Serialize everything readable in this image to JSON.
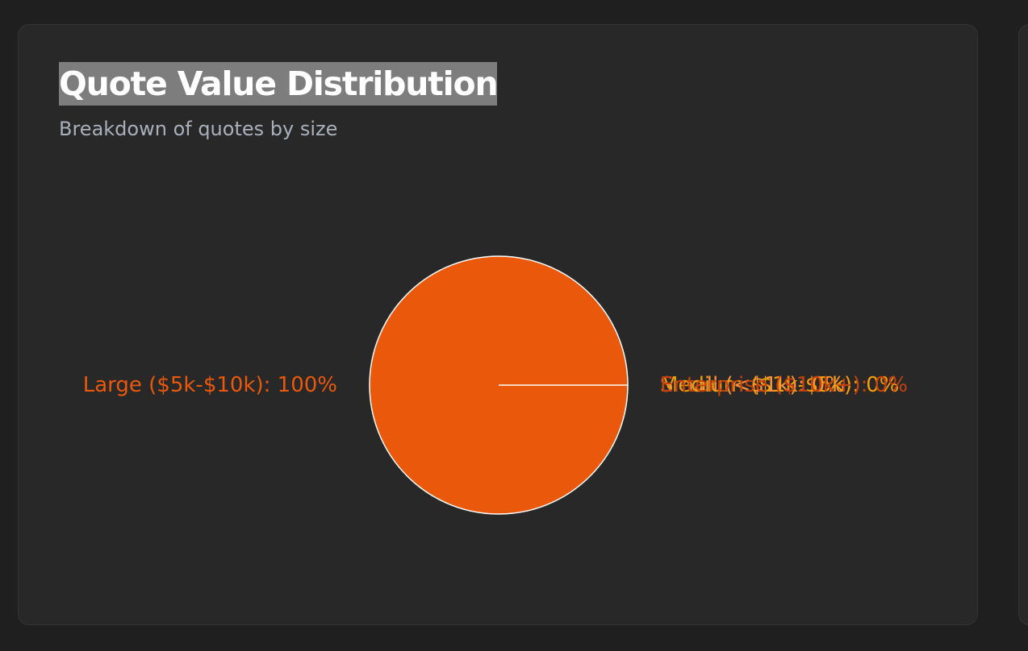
{
  "card": {
    "title": "Quote Value Distribution",
    "subtitle": "Breakdown of quotes by size"
  },
  "chart_data": {
    "type": "pie",
    "title": "Quote Value Distribution",
    "subtitle": "Breakdown of quotes by size",
    "slices": [
      {
        "label": "Small (<$1k)",
        "value": 0,
        "color": "#fb923c"
      },
      {
        "label": "Medium ($1k-$5k)",
        "value": 0,
        "color": "#f59e0b"
      },
      {
        "label": "Large ($5k-$10k)",
        "value": 100,
        "color": "#ea580c"
      },
      {
        "label": "Enterprise ($10k+)",
        "value": 0,
        "color": "#c2410c"
      }
    ],
    "slice_labels": [
      "Small (<$1k): 0%",
      "Medium ($1k-$5k): 0%",
      "Large ($5k-$10k): 100%",
      "Enterprise ($10k+): 0%"
    ]
  },
  "colors": {
    "page_bg": "#1f1f1f",
    "card_bg": "#282828",
    "title_highlight": "#7d7d7d",
    "slice_stroke": "#ffffff"
  }
}
